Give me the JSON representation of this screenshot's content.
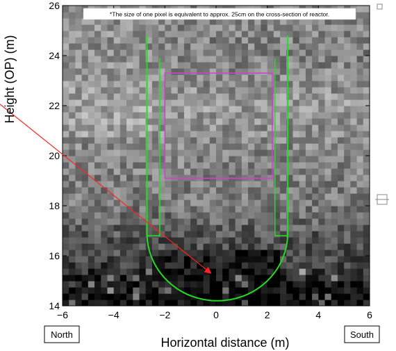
{
  "chart_data": {
    "type": "heatmap",
    "title": "",
    "xlabel": "Horizontal distance (m)",
    "ylabel": "Height (OP) (m)",
    "xlim": [
      -6,
      6
    ],
    "ylim": [
      14,
      26
    ],
    "x_ticks": [
      "-6",
      "-4",
      "-2",
      "0",
      "2",
      "4",
      "6"
    ],
    "y_ticks": [
      "14",
      "16",
      "18",
      "20",
      "22",
      "24",
      "26"
    ],
    "note": "*The size of one pixel is equivalent to approx. 25cm on the cross-section of reactor.",
    "direction_labels": {
      "left": "North",
      "right": "South"
    },
    "grid": false,
    "colormap": "grayscale",
    "overlays": {
      "vessel_outline": {
        "color": "#22dd22",
        "outer_x": [
          -2.7,
          2.8
        ],
        "outer_top": 24.8,
        "inner_x": [
          -2.2,
          2.3
        ],
        "inner_top": 23.9,
        "inner_bottom": 16.8,
        "bottom_center_x": 0.05,
        "bottom_center_y": 16.9,
        "bottom_radius_y": 2.7
      },
      "core_box": {
        "color": "#cc44cc",
        "x": [
          -2.0,
          2.2
        ],
        "y": [
          19.1,
          23.3
        ]
      },
      "arrow": {
        "color": "#ff2222",
        "tip": [
          -0.2,
          15.3
        ]
      }
    },
    "intensity_profile": [
      {
        "y": 14,
        "level": 0.05
      },
      {
        "y": 15,
        "level": 0.12
      },
      {
        "y": 16,
        "level": 0.3
      },
      {
        "y": 16.8,
        "level": 0.33
      },
      {
        "y": 18,
        "level": 0.48
      },
      {
        "y": 20,
        "level": 0.52
      },
      {
        "y": 22,
        "level": 0.6
      },
      {
        "y": 24,
        "level": 0.5
      },
      {
        "y": 26,
        "level": 0.52
      }
    ]
  }
}
